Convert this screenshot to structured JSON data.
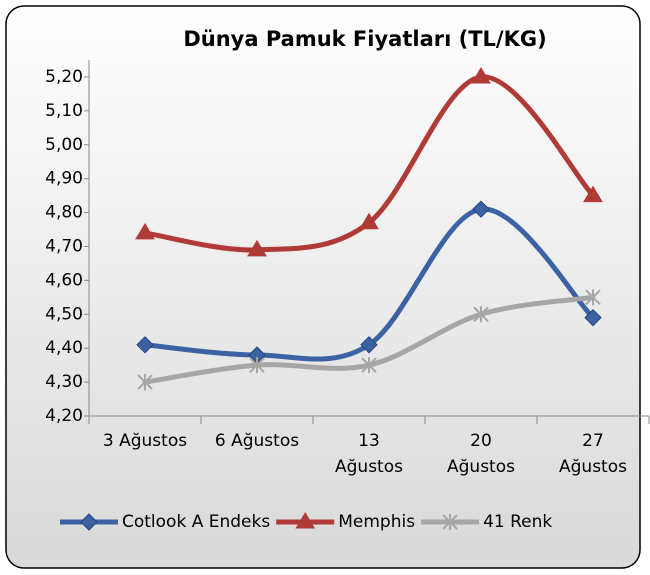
{
  "chart_data": {
    "type": "line",
    "title": "Dünya Pamuk Fiyatları (TL/KG)",
    "categories": [
      "3 Ağustos",
      "6 Ağustos",
      "13 Ağustos",
      "20 Ağustos",
      "27 Ağustos"
    ],
    "series": [
      {
        "name": "Cotlook A Endeks",
        "color": "#3b63a4",
        "marker": "diamond",
        "values": [
          4.41,
          4.38,
          4.41,
          4.81,
          4.49
        ]
      },
      {
        "name": "Memphis",
        "color": "#b03a35",
        "marker": "triangle",
        "values": [
          4.74,
          4.69,
          4.77,
          5.2,
          4.85
        ]
      },
      {
        "name": "41 Renk",
        "color": "#a6a6a6",
        "marker": "star",
        "values": [
          4.3,
          4.35,
          4.35,
          4.5,
          4.55
        ]
      }
    ],
    "ylim": [
      4.2,
      5.25
    ],
    "yticks": [
      {
        "value": 4.2,
        "label": "4,20"
      },
      {
        "value": 4.3,
        "label": "4,30"
      },
      {
        "value": 4.4,
        "label": "4,40"
      },
      {
        "value": 4.5,
        "label": "4,50"
      },
      {
        "value": 4.6,
        "label": "4,60"
      },
      {
        "value": 4.7,
        "label": "4,70"
      },
      {
        "value": 4.8,
        "label": "4,80"
      },
      {
        "value": 4.9,
        "label": "4,90"
      },
      {
        "value": 5.0,
        "label": "5,00"
      },
      {
        "value": 5.1,
        "label": "5,10"
      },
      {
        "value": 5.2,
        "label": "5,20"
      }
    ],
    "legend": "bottom",
    "smooth": true
  }
}
